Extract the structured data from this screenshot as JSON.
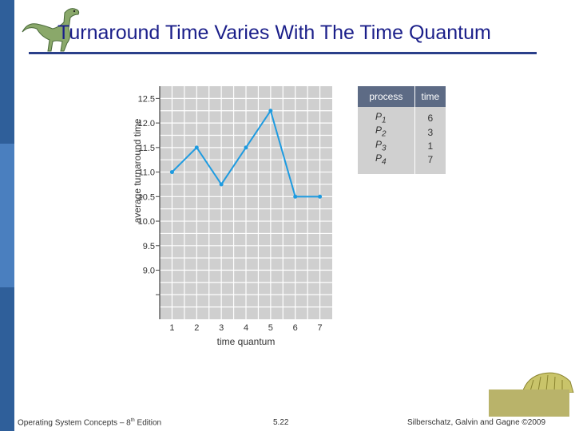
{
  "slide": {
    "title": "Turnaround Time Varies With The Time Quantum",
    "footer_left_pre": "Operating System Concepts – 8",
    "footer_left_sup": "th",
    "footer_left_post": " Edition",
    "footer_center": "5.22",
    "footer_right": "Silberschatz, Galvin and Gagne ©2009"
  },
  "colors": {
    "title": "#1b1f8a",
    "line": "#1e9be0",
    "plot_bg": "#cfcfcf",
    "table_header": "#5d6b85",
    "accent_bar": "#2f5f9a"
  },
  "process_table": {
    "headers": [
      "process",
      "time"
    ],
    "rows": [
      {
        "process": "P",
        "sub": "1",
        "time": "6"
      },
      {
        "process": "P",
        "sub": "2",
        "time": "3"
      },
      {
        "process": "P",
        "sub": "3",
        "time": "1"
      },
      {
        "process": "P",
        "sub": "4",
        "time": "7"
      }
    ]
  },
  "chart_data": {
    "type": "line",
    "xlabel": "time quantum",
    "ylabel": "average turnaround time",
    "x": [
      1,
      2,
      3,
      4,
      5,
      6,
      7
    ],
    "series": [
      {
        "values": [
          11.0,
          11.5,
          10.75,
          11.5,
          12.25,
          10.5,
          10.5
        ]
      }
    ],
    "ylim": [
      8.0,
      12.75
    ],
    "yticks": [
      "12.5",
      "12.0",
      "11.5",
      "11.0",
      "10.5",
      "10.0",
      "9.5",
      "9.0"
    ],
    "xticks": [
      "1",
      "2",
      "3",
      "4",
      "5",
      "6",
      "7"
    ],
    "grid": true
  }
}
